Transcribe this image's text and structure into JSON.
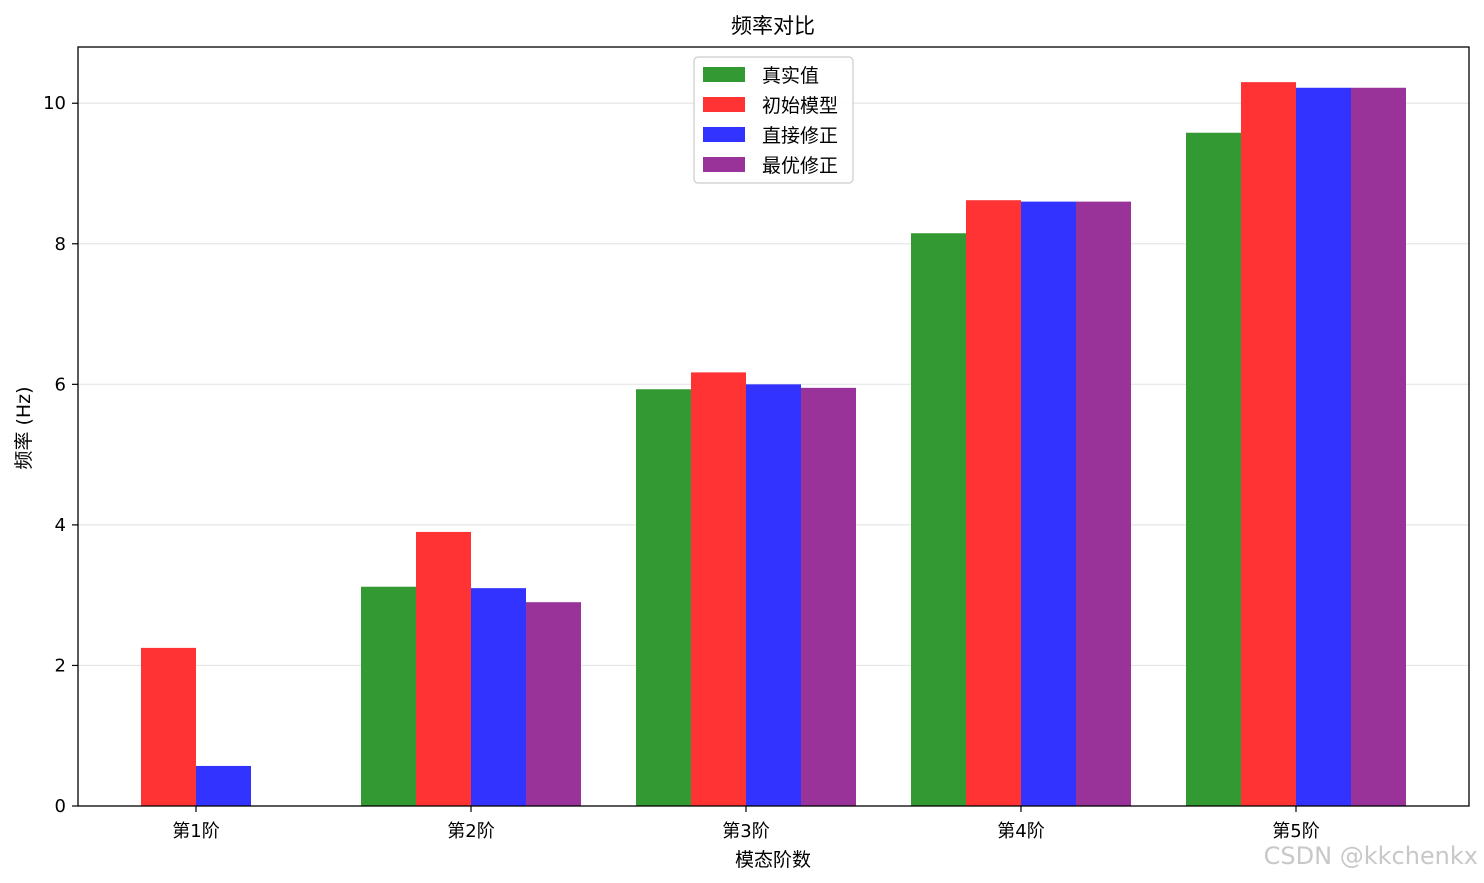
{
  "chart_data": {
    "type": "bar",
    "title": "频率对比",
    "xlabel": "模态阶数",
    "ylabel": "频率 (Hz)",
    "categories": [
      "第1阶",
      "第2阶",
      "第3阶",
      "第4阶",
      "第5阶"
    ],
    "ylim": [
      0,
      10.8
    ],
    "yticks": [
      0,
      2,
      4,
      6,
      8,
      10
    ],
    "grid": "y",
    "legend_position": "top-center",
    "series": [
      {
        "name": "真实值",
        "color": "#339933",
        "values": [
          0,
          3.12,
          5.93,
          8.15,
          9.58
        ]
      },
      {
        "name": "初始模型",
        "color": "#ff3333",
        "values": [
          2.25,
          3.9,
          6.17,
          8.62,
          10.3
        ]
      },
      {
        "name": "直接修正",
        "color": "#3333ff",
        "values": [
          0.57,
          3.1,
          6.0,
          8.6,
          10.22
        ]
      },
      {
        "name": "最优修正",
        "color": "#993399",
        "values": [
          0,
          2.9,
          5.95,
          8.6,
          10.22
        ]
      }
    ]
  },
  "watermark": "CSDN @kkchenkx"
}
